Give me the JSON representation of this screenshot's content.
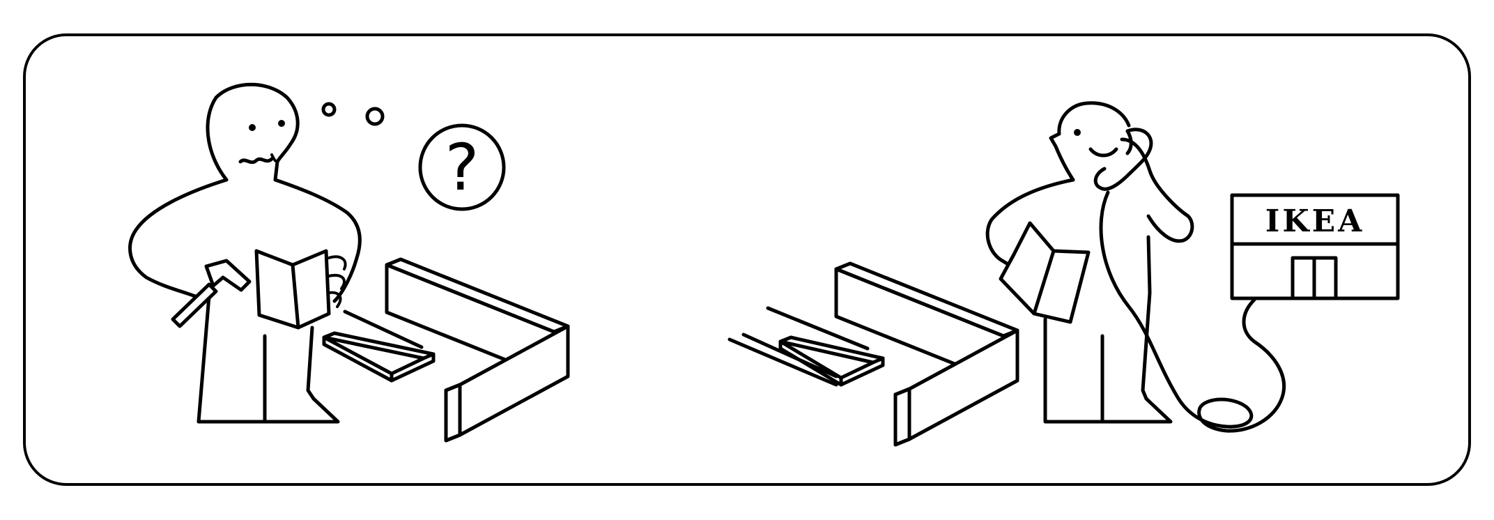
{
  "panel": {
    "store_sign": {
      "label": "IKEA"
    },
    "thought_bubble": {
      "symbol": "?"
    }
  },
  "icons": [
    "confused-person-icon",
    "hammer-icon",
    "instruction-booklet-icon",
    "thought-bubble-icon",
    "furniture-parts-icon",
    "phone-calling-person-icon",
    "telephone-icon",
    "store-building-icon"
  ],
  "colors": {
    "ink": "#000000",
    "paper": "#ffffff"
  }
}
